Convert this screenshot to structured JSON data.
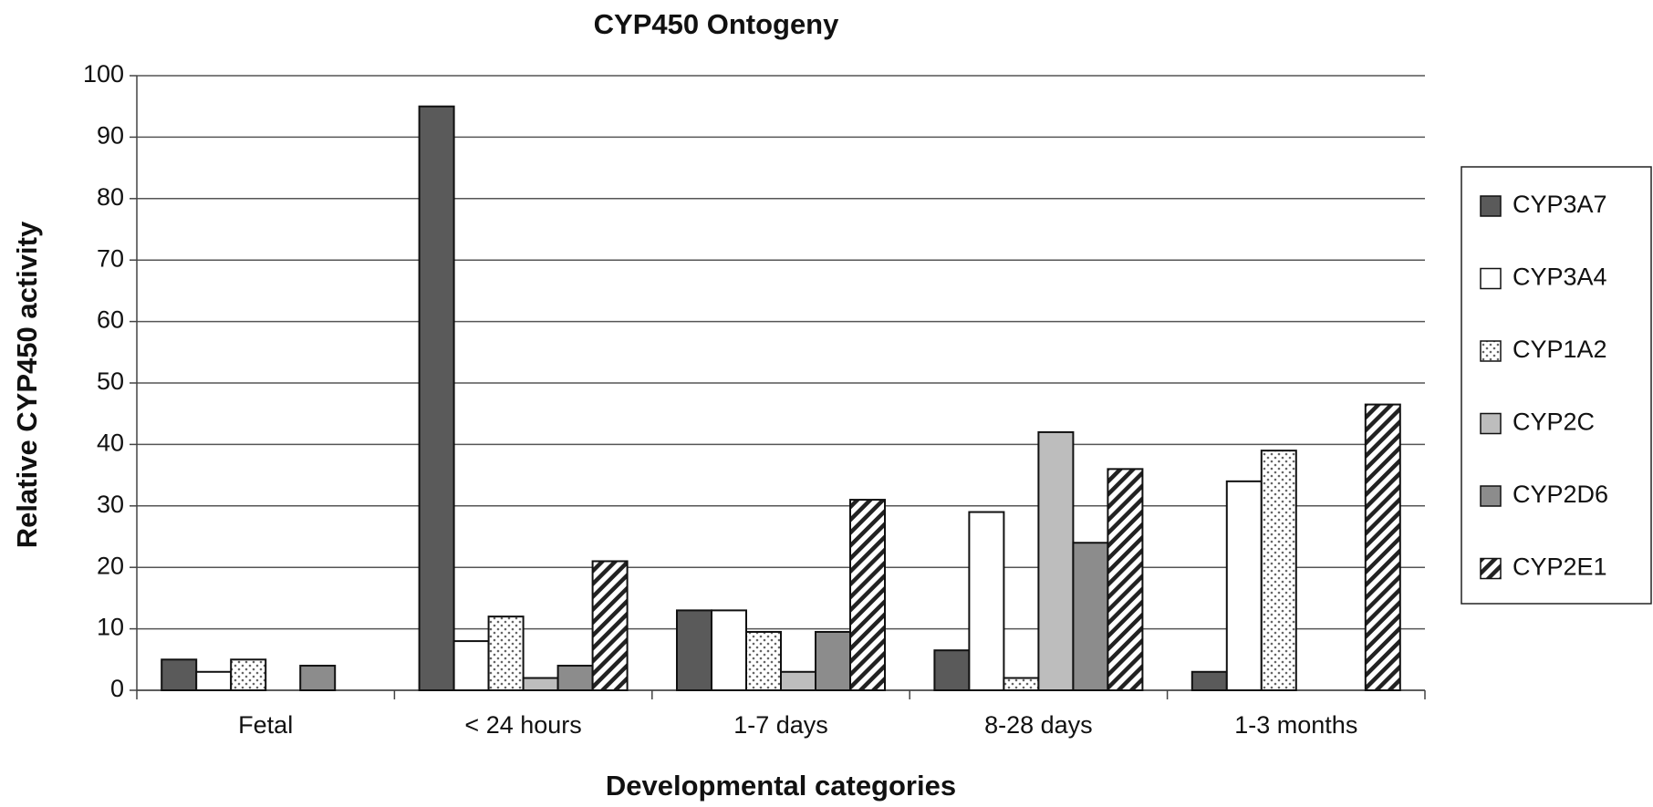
{
  "chart_data": {
    "type": "bar",
    "title": "CYP450 Ontogeny",
    "x_label": "Developmental categories",
    "y_label": "Relative CYP450 activity",
    "categories": [
      "Fetal",
      "< 24 hours",
      "1-7 days",
      "8-28 days",
      "1-3 months"
    ],
    "series": [
      {
        "name": "CYP3A7",
        "color": "#5a5a5a",
        "values": [
          5,
          95,
          13,
          6.5,
          3
        ]
      },
      {
        "name": "CYP3A4",
        "color": "#ffffff",
        "values": [
          3,
          8,
          13,
          29,
          34
        ]
      },
      {
        "name": "CYP1A2",
        "color": "#ffffff",
        "pattern": "dots",
        "values": [
          5,
          12,
          9.5,
          2,
          39
        ]
      },
      {
        "name": "CYP2C",
        "color": "#bdbdbd",
        "values": [
          0,
          2,
          3,
          42,
          0
        ]
      },
      {
        "name": "CYP2D6",
        "color": "#8c8c8c",
        "values": [
          4,
          4,
          9.5,
          24,
          0
        ]
      },
      {
        "name": "CYP2E1",
        "color": "#ffffff",
        "pattern": "hatch",
        "values": [
          0,
          21,
          31,
          36,
          46.5
        ]
      }
    ],
    "ylim": [
      0,
      100
    ],
    "yticks": [
      0,
      10,
      20,
      30,
      40,
      50,
      60,
      70,
      80,
      90,
      100
    ],
    "grid": true,
    "legend": "right"
  }
}
